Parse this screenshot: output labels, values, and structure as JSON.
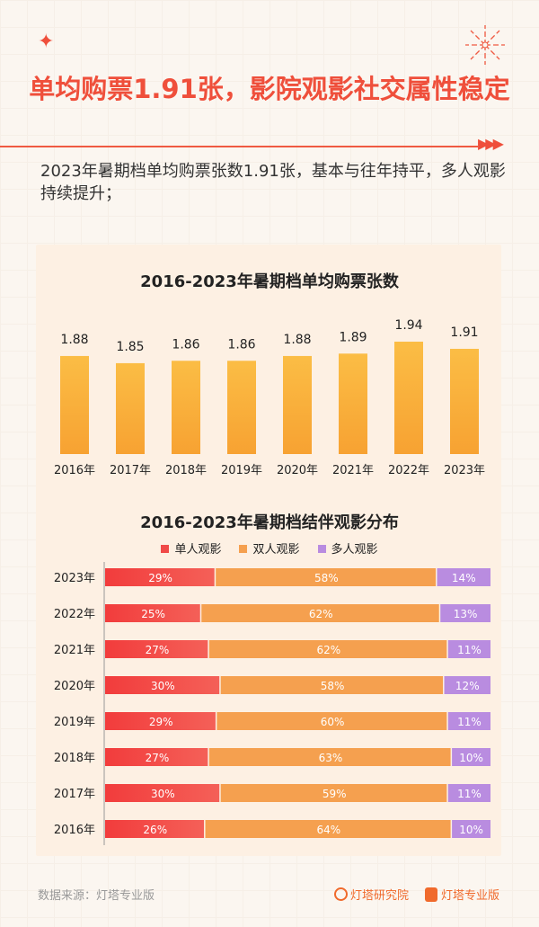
{
  "header": {
    "title": "单均购票1.91张，影院观影社交属性稳定",
    "description": "2023年暑期档单均购票张数1.91张，基本与往年持平，多人观影持续提升；"
  },
  "colors": {
    "accent": "#ef4f3b",
    "bar": "#f9ad3a",
    "single": "#f04a48",
    "double": "#f5a04f",
    "multi": "#b98ce0"
  },
  "chart_data": [
    {
      "type": "bar",
      "title": "2016-2023年暑期档单均购票张数",
      "categories": [
        "2016年",
        "2017年",
        "2018年",
        "2019年",
        "2020年",
        "2021年",
        "2022年",
        "2023年"
      ],
      "values": [
        1.88,
        1.85,
        1.86,
        1.86,
        1.88,
        1.89,
        1.94,
        1.91
      ],
      "value_labels": [
        "1.88",
        "1.85",
        "1.86",
        "1.86",
        "1.88",
        "1.89",
        "1.94",
        "1.91"
      ]
    },
    {
      "type": "bar",
      "orientation": "horizontal",
      "stacked": true,
      "title": "2016-2023年暑期档结伴观影分布",
      "legend_position": "top",
      "categories": [
        "2023年",
        "2022年",
        "2021年",
        "2020年",
        "2019年",
        "2018年",
        "2017年",
        "2016年"
      ],
      "series": [
        {
          "name": "单人观影",
          "values": [
            29,
            25,
            27,
            30,
            29,
            27,
            30,
            26
          ],
          "labels": [
            "29%",
            "25%",
            "27%",
            "30%",
            "29%",
            "27%",
            "30%",
            "26%"
          ]
        },
        {
          "name": "双人观影",
          "values": [
            58,
            62,
            62,
            58,
            60,
            63,
            59,
            64
          ],
          "labels": [
            "58%",
            "62%",
            "62%",
            "58%",
            "60%",
            "63%",
            "59%",
            "64%"
          ]
        },
        {
          "name": "多人观影",
          "values": [
            14,
            13,
            11,
            12,
            11,
            10,
            11,
            10
          ],
          "labels": [
            "14%",
            "13%",
            "11%",
            "12%",
            "11%",
            "10%",
            "11%",
            "10%"
          ]
        }
      ]
    }
  ],
  "footer": {
    "source": "数据来源：灯塔专业版",
    "brand1": "灯塔研究院",
    "brand2": "灯塔专业版"
  }
}
